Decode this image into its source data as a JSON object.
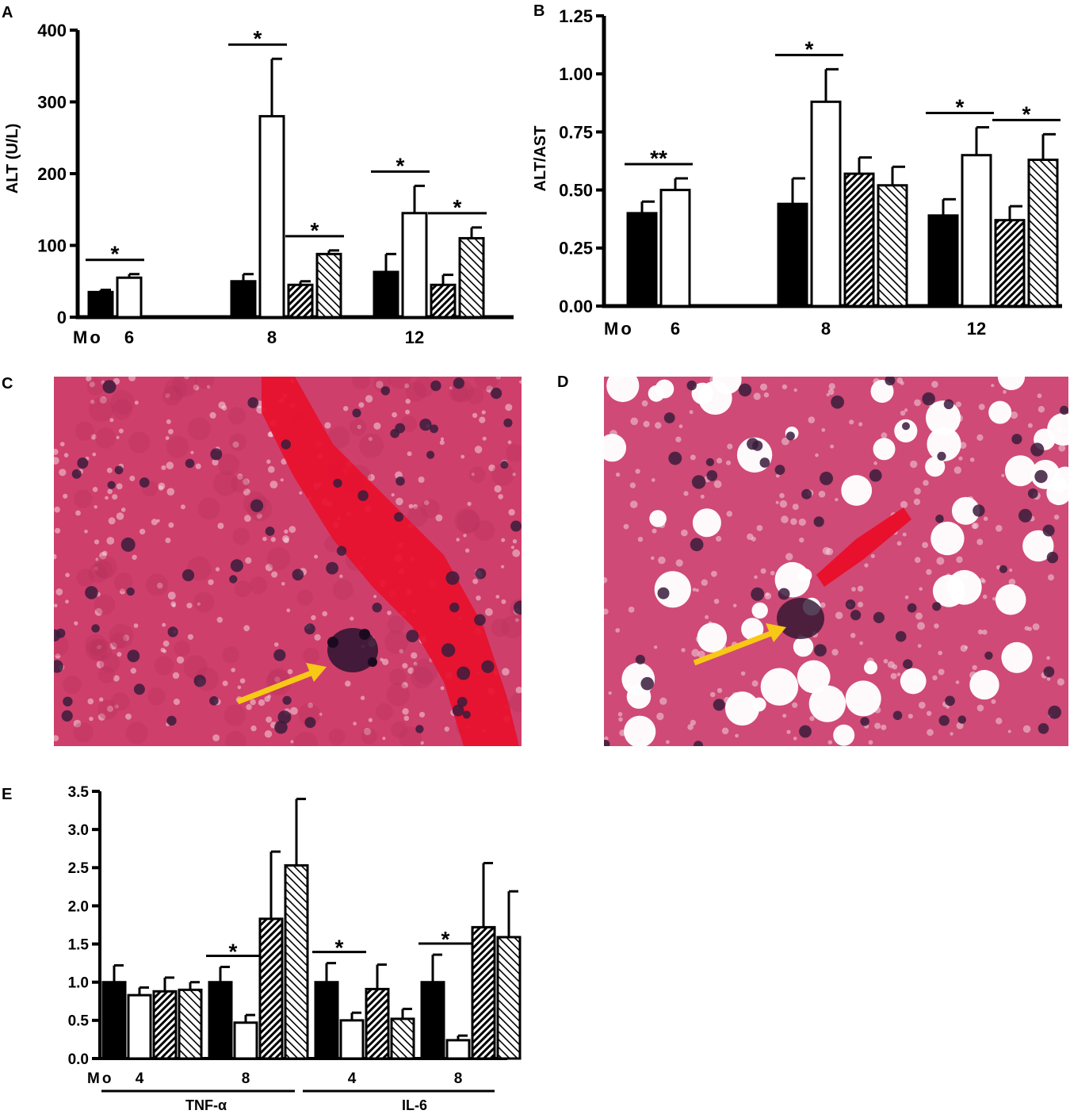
{
  "chart_data": [
    {
      "panel": "A",
      "type": "bar",
      "ylabel": "ALT (U/L)",
      "ylim": [
        0,
        400
      ],
      "yticks": [
        "0",
        "100",
        "200",
        "300",
        "400"
      ],
      "x_prefix": "Mo",
      "groups": [
        {
          "label": "6",
          "bars": [
            {
              "pattern": "solid",
              "value": 35,
              "err": 3
            },
            {
              "pattern": "open",
              "value": 55,
              "err": 5
            }
          ]
        },
        {
          "label": "8",
          "bars": [
            {
              "pattern": "solid",
              "value": 50,
              "err": 10
            },
            {
              "pattern": "open",
              "value": 280,
              "err": 80
            },
            {
              "pattern": "dense",
              "value": 45,
              "err": 5
            },
            {
              "pattern": "sparse",
              "value": 88,
              "err": 5
            }
          ]
        },
        {
          "label": "12",
          "bars": [
            {
              "pattern": "solid",
              "value": 63,
              "err": 25
            },
            {
              "pattern": "open",
              "value": 145,
              "err": 38
            },
            {
              "pattern": "dense",
              "value": 45,
              "err": 14
            },
            {
              "pattern": "sparse",
              "value": 110,
              "err": 15
            }
          ]
        }
      ],
      "significance": [
        {
          "group": 0,
          "from": 0,
          "to": 1,
          "label": "*"
        },
        {
          "group": 1,
          "from": 0,
          "to": 1,
          "label": "*"
        },
        {
          "group": 1,
          "from": 2,
          "to": 3,
          "label": "*"
        },
        {
          "group": 2,
          "from": 0,
          "to": 1,
          "label": "*"
        },
        {
          "group": 2,
          "from": 2,
          "to": 3,
          "label": "*"
        }
      ]
    },
    {
      "panel": "B",
      "type": "bar",
      "ylabel": "ALT/AST",
      "ylim": [
        0,
        1.25
      ],
      "yticks": [
        "0.00",
        "0.25",
        "0.50",
        "0.75",
        "1.00",
        "1.25"
      ],
      "x_prefix": "Mo",
      "groups": [
        {
          "label": "6",
          "bars": [
            {
              "pattern": "solid",
              "value": 0.4,
              "err": 0.05
            },
            {
              "pattern": "open",
              "value": 0.5,
              "err": 0.05
            }
          ]
        },
        {
          "label": "8",
          "bars": [
            {
              "pattern": "solid",
              "value": 0.44,
              "err": 0.11
            },
            {
              "pattern": "open",
              "value": 0.88,
              "err": 0.14
            },
            {
              "pattern": "dense",
              "value": 0.57,
              "err": 0.07
            },
            {
              "pattern": "sparse",
              "value": 0.52,
              "err": 0.08
            }
          ]
        },
        {
          "label": "12",
          "bars": [
            {
              "pattern": "solid",
              "value": 0.39,
              "err": 0.07
            },
            {
              "pattern": "open",
              "value": 0.65,
              "err": 0.12
            },
            {
              "pattern": "dense",
              "value": 0.37,
              "err": 0.06
            },
            {
              "pattern": "sparse",
              "value": 0.63,
              "err": 0.11
            }
          ]
        }
      ],
      "significance": [
        {
          "group": 0,
          "from": 0,
          "to": 1,
          "label": "**"
        },
        {
          "group": 1,
          "from": 0,
          "to": 1,
          "label": "*"
        },
        {
          "group": 2,
          "from": 0,
          "to": 1,
          "label": "*"
        },
        {
          "group": 2,
          "from": 2,
          "to": 3,
          "label": "*"
        }
      ]
    },
    {
      "panel": "E",
      "type": "bar",
      "ylabel": "",
      "ylim": [
        0,
        3.5
      ],
      "yticks": [
        "0.0",
        "0.5",
        "1.0",
        "1.5",
        "2.0",
        "2.5",
        "3.0",
        "3.5"
      ],
      "x_prefix": "Mo",
      "groups": [
        {
          "label": "4",
          "bars": [
            {
              "pattern": "solid",
              "value": 1.0,
              "err": 0.22
            },
            {
              "pattern": "open",
              "value": 0.83,
              "err": 0.1
            },
            {
              "pattern": "dense",
              "value": 0.88,
              "err": 0.18
            },
            {
              "pattern": "sparse",
              "value": 0.9,
              "err": 0.1
            }
          ]
        },
        {
          "label": "8",
          "bars": [
            {
              "pattern": "solid",
              "value": 1.0,
              "err": 0.2
            },
            {
              "pattern": "open",
              "value": 0.47,
              "err": 0.1
            },
            {
              "pattern": "dense",
              "value": 1.83,
              "err": 0.88
            },
            {
              "pattern": "sparse",
              "value": 2.53,
              "err": 0.87
            }
          ]
        },
        {
          "label": "4",
          "bars": [
            {
              "pattern": "solid",
              "value": 1.0,
              "err": 0.25
            },
            {
              "pattern": "open",
              "value": 0.5,
              "err": 0.1
            },
            {
              "pattern": "dense",
              "value": 0.91,
              "err": 0.32
            },
            {
              "pattern": "sparse",
              "value": 0.52,
              "err": 0.13
            }
          ]
        },
        {
          "label": "8",
          "bars": [
            {
              "pattern": "solid",
              "value": 1.0,
              "err": 0.36
            },
            {
              "pattern": "open",
              "value": 0.24,
              "err": 0.06
            },
            {
              "pattern": "dense",
              "value": 1.72,
              "err": 0.84
            },
            {
              "pattern": "sparse",
              "value": 1.59,
              "err": 0.6
            }
          ]
        }
      ],
      "significance": [
        {
          "group": 1,
          "from": 0,
          "to": 1,
          "label": "*"
        },
        {
          "group": 2,
          "from": 0,
          "to": 1,
          "label": "*"
        },
        {
          "group": 3,
          "from": 0,
          "to": 1,
          "label": "*"
        }
      ],
      "brackets": [
        "TNF-α",
        "IL-6"
      ]
    }
  ],
  "micrographs": {
    "c": {
      "letter": "C"
    },
    "d": {
      "letter": "D"
    }
  },
  "colors": {
    "bar_solid": "#000000",
    "bar_open": "#ffffff",
    "tissue_pink": "#d4406e",
    "blood_red": "#e8102c",
    "nuclei": "#2a1430",
    "arrow": "#f7c815"
  }
}
